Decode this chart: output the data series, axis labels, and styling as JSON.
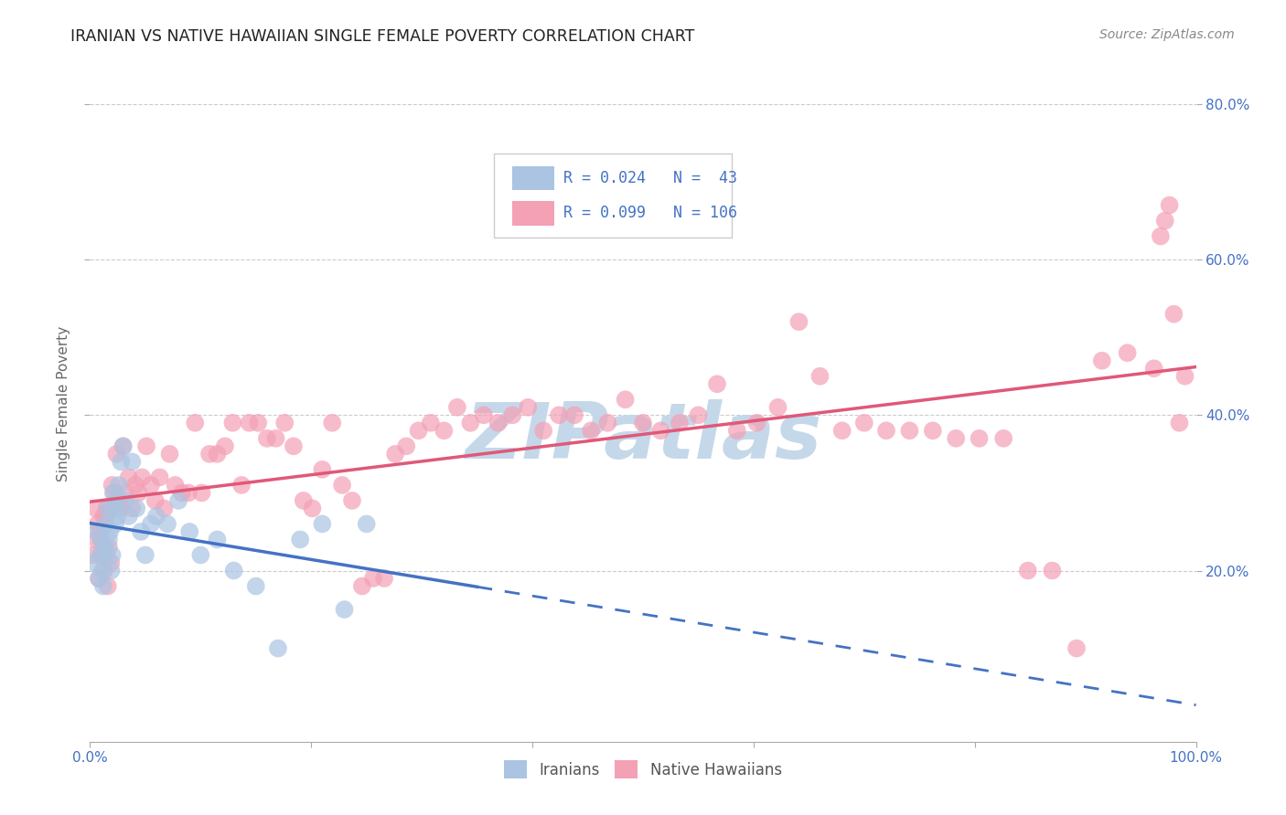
{
  "title": "IRANIAN VS NATIVE HAWAIIAN SINGLE FEMALE POVERTY CORRELATION CHART",
  "source": "Source: ZipAtlas.com",
  "ylabel": "Single Female Poverty",
  "xlim": [
    0.0,
    1.0
  ],
  "ylim": [
    -0.02,
    0.85
  ],
  "x_ticks": [
    0.0,
    0.2,
    0.4,
    0.6,
    0.8,
    1.0
  ],
  "x_tick_labels": [
    "0.0%",
    "",
    "",
    "",
    "",
    "100.0%"
  ],
  "y_ticks": [
    0.2,
    0.4,
    0.6,
    0.8
  ],
  "y_tick_labels_right": [
    "20.0%",
    "40.0%",
    "60.0%",
    "80.0%"
  ],
  "iranians_R": 0.024,
  "iranians_N": 43,
  "hawaiians_R": 0.099,
  "hawaiians_N": 106,
  "scatter_blue_color": "#aac4e2",
  "scatter_pink_color": "#f4a0b5",
  "line_blue_color": "#4472c4",
  "line_pink_color": "#e05878",
  "legend_blue_color": "#aac4e2",
  "legend_pink_color": "#f4a0b5",
  "watermark_color": "#c5d8ea",
  "background_color": "#ffffff",
  "grid_color": "#cccccc",
  "title_color": "#222222",
  "axis_label_color": "#666666",
  "tick_color": "#4472c4",
  "iranians_x": [
    0.004,
    0.006,
    0.008,
    0.009,
    0.01,
    0.011,
    0.012,
    0.013,
    0.014,
    0.015,
    0.016,
    0.017,
    0.018,
    0.019,
    0.02,
    0.021,
    0.022,
    0.023,
    0.024,
    0.025,
    0.026,
    0.028,
    0.03,
    0.032,
    0.035,
    0.038,
    0.042,
    0.046,
    0.05,
    0.055,
    0.06,
    0.07,
    0.08,
    0.09,
    0.1,
    0.115,
    0.13,
    0.15,
    0.17,
    0.19,
    0.21,
    0.23,
    0.25
  ],
  "iranians_y": [
    0.21,
    0.25,
    0.19,
    0.22,
    0.24,
    0.2,
    0.18,
    0.23,
    0.26,
    0.22,
    0.28,
    0.24,
    0.25,
    0.2,
    0.22,
    0.3,
    0.28,
    0.26,
    0.29,
    0.27,
    0.31,
    0.34,
    0.36,
    0.29,
    0.27,
    0.34,
    0.28,
    0.25,
    0.22,
    0.26,
    0.27,
    0.26,
    0.29,
    0.25,
    0.22,
    0.24,
    0.2,
    0.18,
    0.1,
    0.24,
    0.26,
    0.15,
    0.26
  ],
  "hawaiians_x": [
    0.003,
    0.005,
    0.006,
    0.007,
    0.008,
    0.009,
    0.01,
    0.011,
    0.012,
    0.013,
    0.014,
    0.015,
    0.016,
    0.017,
    0.018,
    0.019,
    0.02,
    0.022,
    0.024,
    0.026,
    0.028,
    0.03,
    0.032,
    0.035,
    0.038,
    0.041,
    0.044,
    0.047,
    0.051,
    0.055,
    0.059,
    0.063,
    0.067,
    0.072,
    0.077,
    0.083,
    0.089,
    0.095,
    0.101,
    0.108,
    0.115,
    0.122,
    0.129,
    0.137,
    0.144,
    0.152,
    0.16,
    0.168,
    0.176,
    0.184,
    0.193,
    0.201,
    0.21,
    0.219,
    0.228,
    0.237,
    0.246,
    0.256,
    0.266,
    0.276,
    0.286,
    0.297,
    0.308,
    0.32,
    0.332,
    0.344,
    0.356,
    0.369,
    0.382,
    0.396,
    0.41,
    0.424,
    0.438,
    0.453,
    0.468,
    0.484,
    0.5,
    0.516,
    0.533,
    0.55,
    0.567,
    0.585,
    0.603,
    0.622,
    0.641,
    0.66,
    0.68,
    0.7,
    0.72,
    0.741,
    0.762,
    0.783,
    0.804,
    0.826,
    0.848,
    0.87,
    0.892,
    0.915,
    0.938,
    0.962,
    0.968,
    0.972,
    0.976,
    0.98,
    0.985,
    0.99
  ],
  "hawaiians_y": [
    0.22,
    0.28,
    0.24,
    0.26,
    0.19,
    0.25,
    0.24,
    0.22,
    0.27,
    0.2,
    0.27,
    0.28,
    0.18,
    0.23,
    0.28,
    0.21,
    0.31,
    0.3,
    0.35,
    0.29,
    0.28,
    0.36,
    0.3,
    0.32,
    0.28,
    0.31,
    0.3,
    0.32,
    0.36,
    0.31,
    0.29,
    0.32,
    0.28,
    0.35,
    0.31,
    0.3,
    0.3,
    0.39,
    0.3,
    0.35,
    0.35,
    0.36,
    0.39,
    0.31,
    0.39,
    0.39,
    0.37,
    0.37,
    0.39,
    0.36,
    0.29,
    0.28,
    0.33,
    0.39,
    0.31,
    0.29,
    0.18,
    0.19,
    0.19,
    0.35,
    0.36,
    0.38,
    0.39,
    0.38,
    0.41,
    0.39,
    0.4,
    0.39,
    0.4,
    0.41,
    0.38,
    0.4,
    0.4,
    0.38,
    0.39,
    0.42,
    0.39,
    0.38,
    0.39,
    0.4,
    0.44,
    0.38,
    0.39,
    0.41,
    0.52,
    0.45,
    0.38,
    0.39,
    0.38,
    0.38,
    0.38,
    0.37,
    0.37,
    0.37,
    0.2,
    0.2,
    0.1,
    0.47,
    0.48,
    0.46,
    0.63,
    0.65,
    0.67,
    0.53,
    0.39,
    0.45
  ]
}
